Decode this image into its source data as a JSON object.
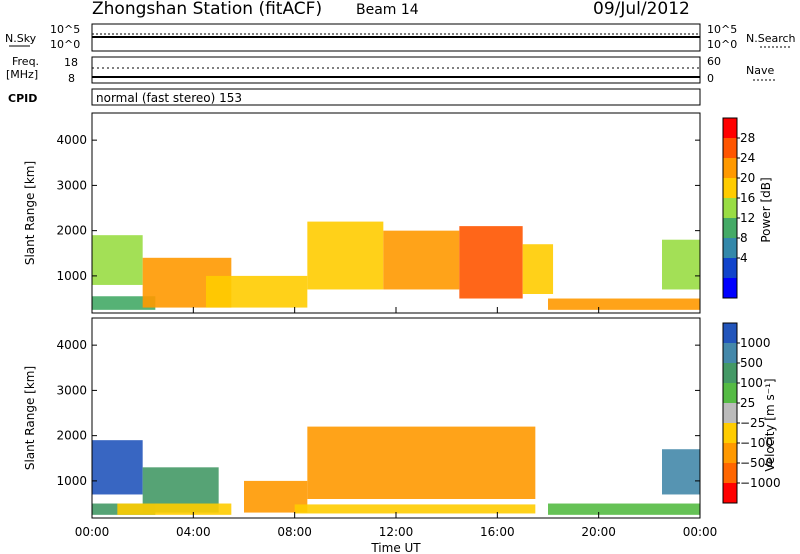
{
  "header": {
    "title": "Zhongshan Station (fitACF)",
    "beam": "Beam 14",
    "date": "09/Jul/2012"
  },
  "aux": {
    "nsky_label": "N.Sky",
    "nsky_ticks": [
      "10^5",
      "10^0"
    ],
    "nsearch_label": "N.Search",
    "nsearch_ticks": [
      "10^5",
      "10^0"
    ],
    "freq_label_1": "Freq.",
    "freq_label_2": "[MHz]",
    "freq_ticks": [
      "18",
      "8"
    ],
    "nave_label": "Nave",
    "nave_ticks": [
      "60",
      "0"
    ],
    "cpid_label": "CPID",
    "cpid_text": "normal (fast stereo) 153"
  },
  "chart_data": [
    {
      "type": "heatmap",
      "name": "power",
      "x_ticks": [
        "00:00",
        "04:00",
        "08:00",
        "12:00",
        "16:00",
        "20:00",
        "00:00"
      ],
      "xlim_hours": [
        0,
        24
      ],
      "ylabel": "Slant Range [km]",
      "y_ticks": [
        1000,
        2000,
        3000,
        4000
      ],
      "ylim": [
        180,
        4600
      ],
      "colorbar_label": "Power [dB]",
      "colorbar_ticks": [
        "28",
        "24",
        "20",
        "16",
        "12",
        "8",
        "4"
      ],
      "colorbar_colors": [
        "#ff0000",
        "#ff5500",
        "#ff9900",
        "#ffcc00",
        "#99dd44",
        "#44aa66",
        "#3388aa",
        "#1144cc",
        "#0000ff"
      ],
      "regions": [
        {
          "t0": 0.0,
          "t1": 2.5,
          "r0": 250,
          "r1": 550,
          "level": 5
        },
        {
          "t0": 0.0,
          "t1": 2.0,
          "r0": 800,
          "r1": 1900,
          "level": 4
        },
        {
          "t0": 2.0,
          "t1": 5.5,
          "r0": 300,
          "r1": 1400,
          "level": 2
        },
        {
          "t0": 4.5,
          "t1": 8.5,
          "r0": 300,
          "r1": 1000,
          "level": 3
        },
        {
          "t0": 8.5,
          "t1": 11.5,
          "r0": 700,
          "r1": 2200,
          "level": 3
        },
        {
          "t0": 11.5,
          "t1": 14.5,
          "r0": 700,
          "r1": 2000,
          "level": 2
        },
        {
          "t0": 14.5,
          "t1": 17.0,
          "r0": 500,
          "r1": 2100,
          "level": 1
        },
        {
          "t0": 17.0,
          "t1": 18.2,
          "r0": 600,
          "r1": 1700,
          "level": 3
        },
        {
          "t0": 18.0,
          "t1": 24.0,
          "r0": 250,
          "r1": 500,
          "level": 2
        },
        {
          "t0": 22.5,
          "t1": 24.0,
          "r0": 700,
          "r1": 1800,
          "level": 4
        }
      ]
    },
    {
      "type": "heatmap",
      "name": "velocity",
      "x_ticks": [
        "00:00",
        "04:00",
        "08:00",
        "12:00",
        "16:00",
        "20:00",
        "00:00"
      ],
      "xlim_hours": [
        0,
        24
      ],
      "xlabel": "Time UT",
      "ylabel": "Slant Range [km]",
      "y_ticks": [
        1000,
        2000,
        3000,
        4000
      ],
      "ylim": [
        180,
        4600
      ],
      "colorbar_label": "Velocity [m s⁻¹]",
      "colorbar_ticks": [
        "1000",
        "500",
        "100",
        "25",
        "−25",
        "−100",
        "−500",
        "−1000"
      ],
      "colorbar_colors": [
        "#2255bb",
        "#4488aa",
        "#449966",
        "#55bb44",
        "#bbbbbb",
        "#ffcc00",
        "#ff9900",
        "#ff6600",
        "#ff0000"
      ],
      "regions": [
        {
          "t0": 0.0,
          "t1": 2.0,
          "r0": 700,
          "r1": 1900,
          "level": 0
        },
        {
          "t0": 0.0,
          "t1": 2.5,
          "r0": 250,
          "r1": 500,
          "level": 2
        },
        {
          "t0": 2.0,
          "t1": 5.0,
          "r0": 300,
          "r1": 1300,
          "level": 2
        },
        {
          "t0": 1.0,
          "t1": 5.5,
          "r0": 250,
          "r1": 500,
          "level": 5
        },
        {
          "t0": 6.0,
          "t1": 8.5,
          "r0": 300,
          "r1": 1000,
          "level": 6
        },
        {
          "t0": 8.5,
          "t1": 17.5,
          "r0": 600,
          "r1": 2200,
          "level": 6
        },
        {
          "t0": 8.0,
          "t1": 17.5,
          "r0": 280,
          "r1": 480,
          "level": 5
        },
        {
          "t0": 18.0,
          "t1": 24.0,
          "r0": 250,
          "r1": 500,
          "level": 3
        },
        {
          "t0": 22.5,
          "t1": 24.0,
          "r0": 700,
          "r1": 1700,
          "level": 1
        }
      ]
    }
  ]
}
